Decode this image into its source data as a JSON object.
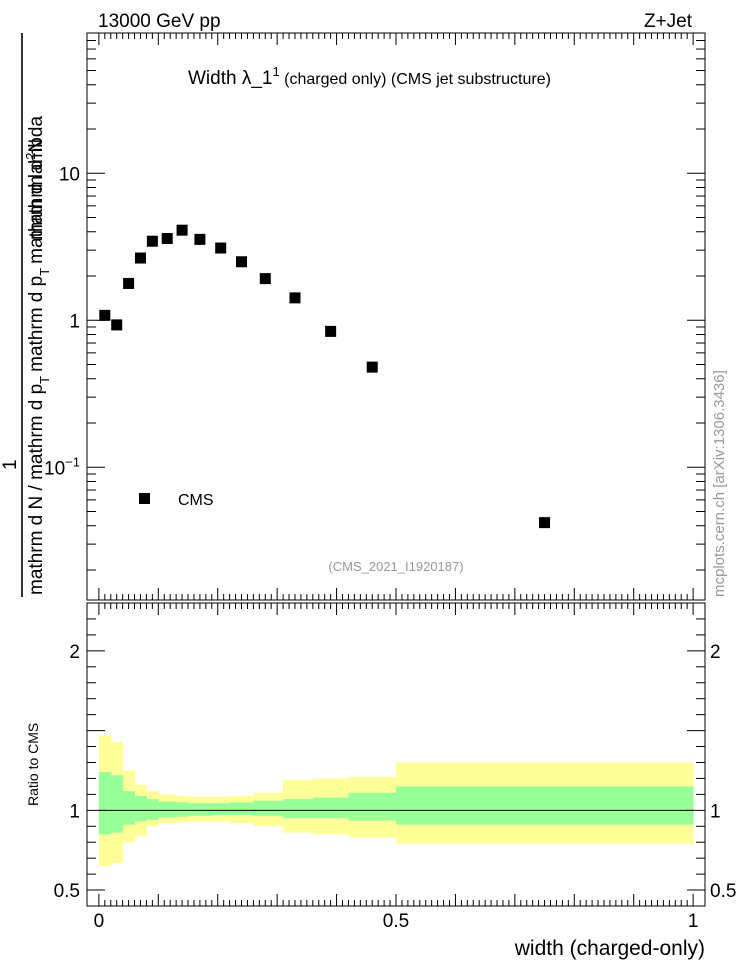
{
  "header": {
    "left": "13000 GeV pp",
    "right": "Z+Jet"
  },
  "plot_title": {
    "main": "Width λ_1",
    "superscript": "1",
    "suffix": " (charged only) (CMS jet substructure)"
  },
  "y_axis_label": {
    "numerator": "mathrm d²N",
    "denominator": "mathrm d N / mathrm d p_T mathrm d p_T mathrm d lambda",
    "numerator_parts": [
      "mathrm d",
      "2",
      "N"
    ],
    "one": "1",
    "den_part1": "mathrm d N / mathrm d p",
    "den_sub1": "T",
    "den_part2": "mathrm d p",
    "den_sub2": "T",
    "den_part3": "mathrm d lambda"
  },
  "legend": {
    "label": "CMS"
  },
  "analysis_tag": "(CMS_2021_I1920187)",
  "side_label": "mcplots.cern.ch [arXiv:1306.3436]",
  "ratio_label": "Ratio to CMS",
  "x_axis_label": "width (charged-only)",
  "colors": {
    "inner_band": "#99ff99",
    "outer_band": "#ffff99",
    "marker": "#000000",
    "ref_line": "#000000"
  },
  "chart_data": [
    {
      "type": "scatter",
      "title": "Width λ_1^1 (charged only) (CMS jet substructure)",
      "yscale": "log",
      "xlim": [
        -0.02,
        1.02
      ],
      "ylim": [
        0.0125,
        90
      ],
      "y_ticks": [
        {
          "value": 0.1,
          "label": "10",
          "exp": "−1"
        },
        {
          "value": 1,
          "label": "1",
          "exp": ""
        },
        {
          "value": 10,
          "label": "10",
          "exp": ""
        }
      ],
      "series": [
        {
          "name": "CMS",
          "x": [
            0.01,
            0.03,
            0.05,
            0.07,
            0.09,
            0.115,
            0.14,
            0.17,
            0.205,
            0.24,
            0.28,
            0.33,
            0.39,
            0.46,
            0.75
          ],
          "y": [
            1.08,
            0.93,
            1.78,
            2.65,
            3.45,
            3.6,
            4.1,
            3.55,
            3.1,
            2.5,
            1.92,
            1.42,
            0.84,
            0.48,
            0.042
          ]
        }
      ]
    },
    {
      "type": "area",
      "title": "Ratio to CMS",
      "ylabel": "Ratio to CMS",
      "xlabel": "width (charged-only)",
      "xlim": [
        -0.02,
        1.02
      ],
      "ylim": [
        0.4,
        2.3
      ],
      "x_ticks": [
        0,
        0.5,
        1
      ],
      "y_ticks": [
        0.5,
        1,
        2
      ],
      "reference": 1,
      "bins": [
        0,
        0.02,
        0.04,
        0.06,
        0.08,
        0.1,
        0.13,
        0.15,
        0.19,
        0.22,
        0.26,
        0.31,
        0.36,
        0.42,
        0.5,
        1.0
      ],
      "inner_band_low": [
        0.85,
        0.86,
        0.91,
        0.93,
        0.94,
        0.955,
        0.96,
        0.965,
        0.97,
        0.97,
        0.965,
        0.95,
        0.95,
        0.935,
        0.91
      ],
      "inner_band_high": [
        1.24,
        1.22,
        1.12,
        1.09,
        1.07,
        1.055,
        1.05,
        1.045,
        1.045,
        1.05,
        1.06,
        1.07,
        1.08,
        1.11,
        1.15
      ],
      "outer_band_low": [
        0.65,
        0.67,
        0.8,
        0.84,
        0.9,
        0.92,
        0.925,
        0.93,
        0.93,
        0.92,
        0.9,
        0.86,
        0.85,
        0.83,
        0.79
      ],
      "outer_band_high": [
        1.47,
        1.43,
        1.25,
        1.16,
        1.12,
        1.1,
        1.09,
        1.085,
        1.085,
        1.09,
        1.11,
        1.19,
        1.2,
        1.21,
        1.3
      ]
    }
  ]
}
